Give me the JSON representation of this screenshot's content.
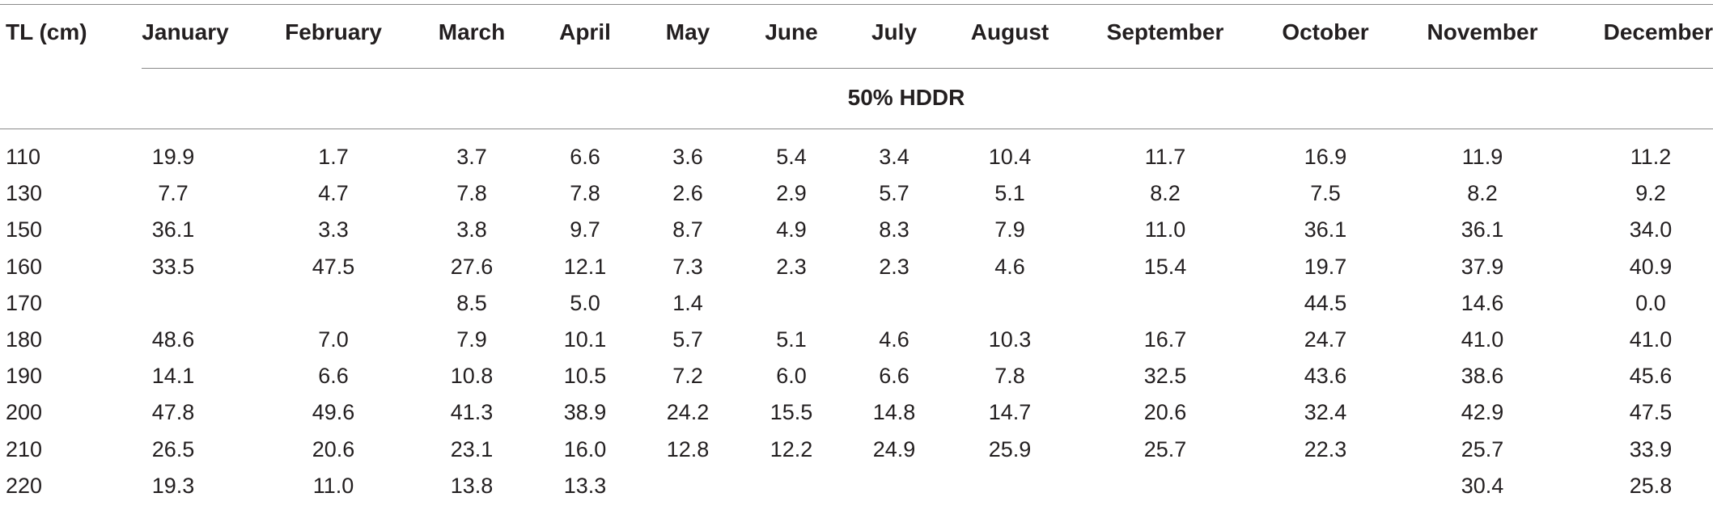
{
  "table": {
    "columns": [
      "TL (cm)",
      "January",
      "February",
      "March",
      "April",
      "May",
      "June",
      "July",
      "August",
      "September",
      "October",
      "November",
      "December"
    ],
    "subheader": "50% HDDR",
    "rows": [
      {
        "tl": "110",
        "values": [
          "19.9",
          "1.7",
          "3.7",
          "6.6",
          "3.6",
          "5.4",
          "3.4",
          "10.4",
          "11.7",
          "16.9",
          "11.9",
          "11.2"
        ]
      },
      {
        "tl": "130",
        "values": [
          "7.7",
          "4.7",
          "7.8",
          "7.8",
          "2.6",
          "2.9",
          "5.7",
          "5.1",
          "8.2",
          "7.5",
          "8.2",
          "9.2"
        ]
      },
      {
        "tl": "150",
        "values": [
          "36.1",
          "3.3",
          "3.8",
          "9.7",
          "8.7",
          "4.9",
          "8.3",
          "7.9",
          "11.0",
          "36.1",
          "36.1",
          "34.0"
        ]
      },
      {
        "tl": "160",
        "values": [
          "33.5",
          "47.5",
          "27.6",
          "12.1",
          "7.3",
          "2.3",
          "2.3",
          "4.6",
          "15.4",
          "19.7",
          "37.9",
          "40.9"
        ]
      },
      {
        "tl": "170",
        "values": [
          "",
          "",
          "8.5",
          "5.0",
          "1.4",
          "",
          "",
          "",
          "",
          "44.5",
          "14.6",
          "0.0"
        ]
      },
      {
        "tl": "180",
        "values": [
          "48.6",
          "7.0",
          "7.9",
          "10.1",
          "5.7",
          "5.1",
          "4.6",
          "10.3",
          "16.7",
          "24.7",
          "41.0",
          "41.0"
        ]
      },
      {
        "tl": "190",
        "values": [
          "14.1",
          "6.6",
          "10.8",
          "10.5",
          "7.2",
          "6.0",
          "6.6",
          "7.8",
          "32.5",
          "43.6",
          "38.6",
          "45.6"
        ]
      },
      {
        "tl": "200",
        "values": [
          "47.8",
          "49.6",
          "41.3",
          "38.9",
          "24.2",
          "15.5",
          "14.8",
          "14.7",
          "20.6",
          "32.4",
          "42.9",
          "47.5"
        ]
      },
      {
        "tl": "210",
        "values": [
          "26.5",
          "20.6",
          "23.1",
          "16.0",
          "12.8",
          "12.2",
          "24.9",
          "25.9",
          "25.7",
          "22.3",
          "25.7",
          "33.9"
        ]
      },
      {
        "tl": "220",
        "values": [
          "19.3",
          "11.0",
          "13.8",
          "13.3",
          "",
          "",
          "",
          "",
          "",
          "",
          "30.4",
          "25.8"
        ]
      }
    ]
  }
}
